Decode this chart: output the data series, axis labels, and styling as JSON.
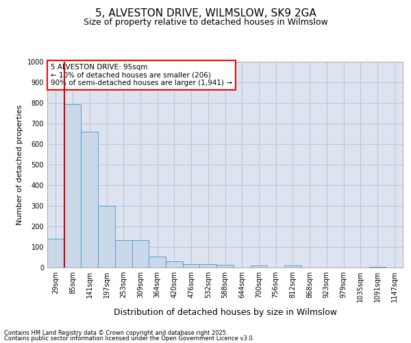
{
  "title_line1": "5, ALVESTON DRIVE, WILMSLOW, SK9 2GA",
  "title_line2": "Size of property relative to detached houses in Wilmslow",
  "xlabel": "Distribution of detached houses by size in Wilmslow",
  "ylabel": "Number of detached properties",
  "categories": [
    "29sqm",
    "85sqm",
    "141sqm",
    "197sqm",
    "253sqm",
    "309sqm",
    "364sqm",
    "420sqm",
    "476sqm",
    "532sqm",
    "588sqm",
    "644sqm",
    "700sqm",
    "756sqm",
    "812sqm",
    "868sqm",
    "923sqm",
    "979sqm",
    "1035sqm",
    "1091sqm",
    "1147sqm"
  ],
  "values": [
    140,
    795,
    660,
    300,
    135,
    135,
    55,
    30,
    18,
    18,
    12,
    0,
    10,
    0,
    10,
    0,
    0,
    0,
    0,
    5,
    0
  ],
  "bar_color": "#c9d9ea",
  "bar_edge_color": "#5b9bd5",
  "grid_color": "#b8c8e0",
  "background_color": "#dde4f0",
  "annotation_line1": "5 ALVESTON DRIVE: 95sqm",
  "annotation_line2": "← 10% of detached houses are smaller (206)",
  "annotation_line3": "90% of semi-detached houses are larger (1,941) →",
  "vline_color": "#cc0000",
  "vline_x": 0.5,
  "footer_line1": "Contains HM Land Registry data © Crown copyright and database right 2025.",
  "footer_line2": "Contains public sector information licensed under the Open Government Licence v3.0.",
  "ylim_max": 1000,
  "yticks": [
    0,
    100,
    200,
    300,
    400,
    500,
    600,
    700,
    800,
    900,
    1000
  ],
  "title1_fontsize": 11,
  "title2_fontsize": 9,
  "ylabel_fontsize": 8,
  "xlabel_fontsize": 9,
  "tick_fontsize": 7,
  "annot_fontsize": 7.5,
  "footer_fontsize": 6
}
